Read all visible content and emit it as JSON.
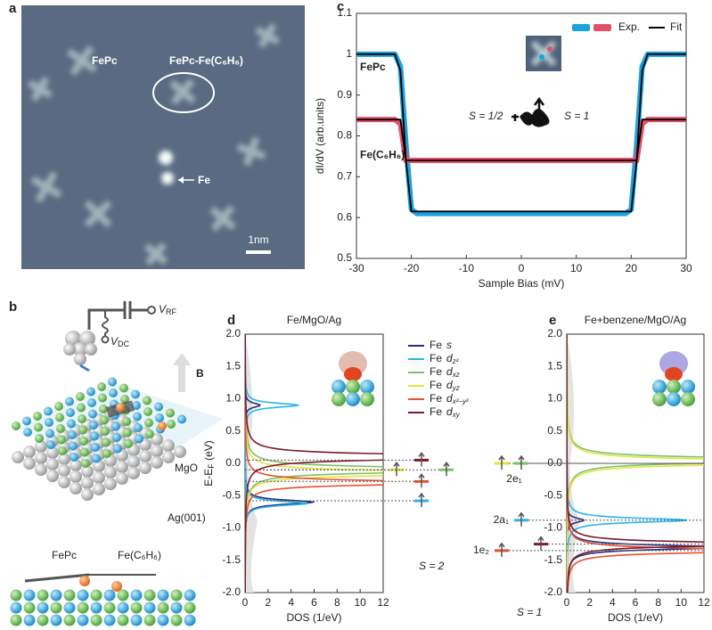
{
  "panel_a": {
    "label": "a",
    "annotations": [
      "FePc",
      "FePc-Fe(C₆H₆)",
      "Fe",
      "1nm"
    ]
  },
  "panel_b": {
    "label": "b",
    "vrf": {
      "symbol": "V",
      "sub": "RF"
    },
    "vdc": {
      "symbol": "V",
      "sub": "DC"
    },
    "field": "B",
    "annotations": [
      "MgO",
      "Ag(001)",
      "FePc",
      "Fe(C₆H₆)"
    ]
  },
  "chart_data": [
    {
      "type": "line",
      "label": "c",
      "xlabel": "Sample Bias (mV)",
      "ylabel": "dI/dV (arb.units)",
      "x": [
        -30,
        -23,
        -22,
        -21,
        -20,
        -19,
        19,
        20,
        21,
        22,
        23,
        30
      ],
      "xlim": [
        -30,
        30
      ],
      "ylim": [
        0.5,
        1.1
      ],
      "xticks": [
        -30,
        -20,
        -10,
        0,
        10,
        20,
        30
      ],
      "yticks": [
        0.5,
        0.6,
        0.7,
        0.8,
        0.9,
        1,
        1.1
      ],
      "series": [
        {
          "name": "FePc",
          "color": "#1ba3dd",
          "values": [
            1.0,
            1.0,
            0.97,
            0.78,
            0.62,
            0.61,
            0.61,
            0.62,
            0.78,
            0.97,
            1.0,
            1.0
          ],
          "fit": [
            1.0,
            1.0,
            0.96,
            0.74,
            0.615,
            0.615,
            0.615,
            0.615,
            0.74,
            0.96,
            1.0,
            1.0
          ]
        },
        {
          "name": "Fe(C₆H₆)",
          "color": "#e4506a",
          "values": [
            0.84,
            0.84,
            0.83,
            0.74,
            0.74,
            0.74,
            0.74,
            0.74,
            0.74,
            0.83,
            0.84,
            0.84
          ],
          "fit": [
            0.84,
            0.84,
            0.84,
            0.74,
            0.74,
            0.74,
            0.74,
            0.74,
            0.74,
            0.84,
            0.84,
            0.84
          ]
        }
      ],
      "legend": [
        {
          "label": "Exp."
        },
        {
          "label": "Fit",
          "color": "#000000"
        }
      ],
      "annotations": [
        "S = 1/2",
        "S = 1"
      ]
    },
    {
      "type": "lorentzian",
      "label": "d",
      "title": "Fe/MgO/Ag",
      "xlabel": "DOS (1/eV)",
      "ylabel": {
        "text": "E-E",
        "sub": "F",
        "unit": " (eV)"
      },
      "xlim": [
        0,
        12
      ],
      "ylim": [
        -2,
        2
      ],
      "xticks": [
        0,
        2,
        4,
        6,
        8,
        10,
        12
      ],
      "yticks": [
        {
          "value": -2,
          "label": "-2.0"
        },
        -1.5,
        {
          "value": -1,
          "label": "-1.0"
        },
        -0.5,
        {
          "value": 0,
          "label": "0.0"
        },
        0.5,
        {
          "value": 1,
          "label": "1.0"
        },
        1.5,
        {
          "value": 2,
          "label": "2.0"
        }
      ],
      "series": [
        {
          "name": "Fe",
          "orbital": "s",
          "color": "#24307d",
          "peaks": [
            {
              "energy": 0.9,
              "dos": 1.3
            },
            {
              "energy": -0.6,
              "dos": 5.9
            }
          ]
        },
        {
          "name": "Fe",
          "orbital": "d",
          "subscript": "z²",
          "color": "#2ab5e8",
          "peaks": [
            {
              "energy": 0.9,
              "dos": 4.6
            },
            {
              "energy": -0.62,
              "dos": 5.4
            }
          ]
        },
        {
          "name": "Fe",
          "orbital": "d",
          "subscript": "xz",
          "color": "#7cc16a",
          "peaks": [
            {
              "energy": -0.1,
              "dos": 30
            }
          ]
        },
        {
          "name": "Fe",
          "orbital": "d",
          "subscript": "yz",
          "color": "#e6e241",
          "peaks": [
            {
              "energy": -0.15,
              "dos": 25
            }
          ]
        },
        {
          "name": "Fe",
          "orbital": "d",
          "subscript": "x²−y²",
          "color": "#e8502f",
          "peaks": [
            {
              "energy": -0.3,
              "dos": 20
            }
          ]
        },
        {
          "name": "Fe",
          "orbital": "d",
          "subscript": "xy",
          "color": "#7b1a2a",
          "peaks": [
            {
              "energy": 0.1,
              "dos": 30
            }
          ]
        }
      ],
      "levels": [
        {
          "energy": 0.05,
          "color": "#7b1a2a"
        },
        {
          "energy": -0.1,
          "color": "#e6e241"
        },
        {
          "energy": -0.1,
          "color": "#7cc16a"
        },
        {
          "energy": -0.28,
          "color": "#e8502f"
        },
        {
          "energy": -0.58,
          "color": "#2ab5e8"
        }
      ],
      "spin": "S = 2"
    },
    {
      "type": "lorentzian",
      "label": "e",
      "title": "Fe+benzene/MgO/Ag",
      "xlabel": "DOS (1/eV)",
      "xlim": [
        0,
        12
      ],
      "ylim": [
        -2,
        2
      ],
      "xticks": [
        0,
        2,
        4,
        6,
        8,
        10,
        12
      ],
      "yticks": [
        {
          "value": -2,
          "label": "-2.0"
        },
        -1.5,
        {
          "value": -1,
          "label": "-1.0"
        },
        -0.5,
        {
          "value": 0,
          "label": "0.0"
        },
        0.5,
        {
          "value": 1,
          "label": "1.0"
        },
        1.5,
        {
          "value": 2,
          "label": "2.0"
        }
      ],
      "series": [
        {
          "color": "#24307d",
          "peaks": [
            {
              "energy": -0.88,
              "dos": 1.5
            },
            {
              "energy": -1.3,
              "dos": 14
            }
          ]
        },
        {
          "color": "#2ab5e8",
          "peaks": [
            {
              "energy": -0.88,
              "dos": 10.5
            }
          ]
        },
        {
          "color": "#7cc16a",
          "peaks": [
            {
              "energy": 0.05,
              "dos": 30
            }
          ]
        },
        {
          "color": "#e6e241",
          "peaks": [
            {
              "energy": 0.02,
              "dos": 30
            }
          ]
        },
        {
          "color": "#e8502f",
          "peaks": [
            {
              "energy": -1.35,
              "dos": 20
            }
          ]
        },
        {
          "color": "#7b1a2a",
          "peaks": [
            {
              "energy": -1.25,
              "dos": 20
            }
          ]
        }
      ],
      "levels": [
        {
          "energy": 0,
          "color": "#e6e241",
          "label": "2e₁"
        },
        {
          "energy": 0,
          "color": "#7cc16a"
        },
        {
          "energy": -0.88,
          "color": "#2ab5e8",
          "label": "2a₁"
        },
        {
          "energy": -1.25,
          "color": "#7b1a2a"
        },
        {
          "energy": -1.35,
          "color": "#e8502f",
          "label": "1e₂"
        }
      ],
      "spin": "S = 1"
    }
  ]
}
